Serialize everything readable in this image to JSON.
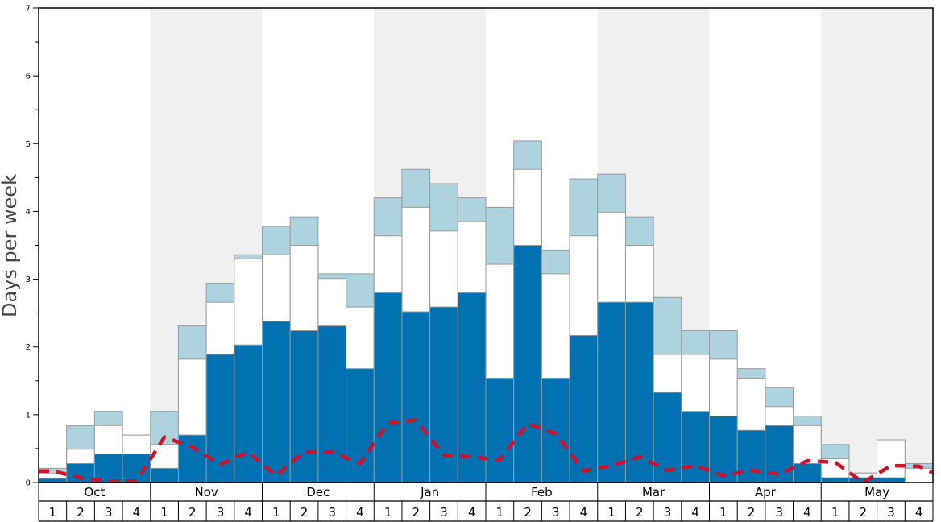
{
  "chart_data": {
    "type": "bar",
    "ylabel": "Days per week",
    "ylim": [
      0,
      7
    ],
    "y_ticks": [
      "0",
      "1",
      "2",
      "3",
      "4",
      "5",
      "6",
      "7"
    ],
    "months": [
      "Oct",
      "Nov",
      "Dec",
      "Jan",
      "Feb",
      "Mar",
      "Apr",
      "May"
    ],
    "week_labels": [
      "1",
      "2",
      "3",
      "4"
    ],
    "categories": [
      "Oct 1",
      "Oct 2",
      "Oct 3",
      "Oct 4",
      "Nov 1",
      "Nov 2",
      "Nov 3",
      "Nov 4",
      "Dec 1",
      "Dec 2",
      "Dec 3",
      "Dec 4",
      "Jan 1",
      "Jan 2",
      "Jan 3",
      "Jan 4",
      "Feb 1",
      "Feb 2",
      "Feb 3",
      "Feb 4",
      "Mar 1",
      "Mar 2",
      "Mar 3",
      "Mar 4",
      "Apr 1",
      "Apr 2",
      "Apr 3",
      "Apr 4",
      "May 1",
      "May 2",
      "May 3",
      "May 4"
    ],
    "series": [
      {
        "type": "bar",
        "color": "#0072b2",
        "values": [
          0.06,
          0.28,
          0.42,
          0.42,
          0.21,
          0.7,
          1.89,
          2.03,
          2.38,
          2.24,
          2.31,
          1.68,
          2.8,
          2.52,
          2.59,
          2.8,
          1.54,
          3.5,
          1.54,
          2.17,
          2.66,
          2.66,
          1.33,
          1.05,
          0.98,
          0.77,
          0.84,
          0.28,
          0.07,
          0.07,
          0.07,
          0.0
        ]
      },
      {
        "type": "bar",
        "color": "#ffffff",
        "values": [
          0.13,
          0.49,
          0.84,
          0.7,
          0.56,
          1.82,
          2.66,
          3.3,
          3.36,
          3.5,
          3.01,
          2.59,
          3.64,
          4.06,
          3.71,
          3.85,
          3.22,
          4.62,
          3.08,
          3.64,
          3.99,
          3.5,
          1.89,
          1.89,
          1.82,
          1.54,
          1.12,
          0.84,
          0.35,
          0.14,
          0.63,
          0.21
        ]
      },
      {
        "type": "bar",
        "color": "#add3df",
        "values": [
          0.21,
          0.84,
          1.05,
          0.7,
          1.05,
          2.31,
          2.94,
          3.36,
          3.78,
          3.92,
          3.08,
          3.08,
          4.2,
          4.62,
          4.41,
          4.2,
          4.06,
          5.04,
          3.43,
          4.48,
          4.55,
          3.92,
          2.73,
          2.24,
          2.24,
          1.68,
          1.4,
          0.98,
          0.56,
          0.14,
          0.63,
          0.28
        ]
      },
      {
        "type": "line",
        "style": "dashed",
        "color": "#d0112b",
        "values": [
          0.17,
          0.07,
          0.02,
          0.02,
          0.67,
          0.52,
          0.27,
          0.45,
          0.1,
          0.45,
          0.45,
          0.28,
          0.88,
          0.92,
          0.4,
          0.38,
          0.33,
          0.87,
          0.72,
          0.17,
          0.25,
          0.38,
          0.18,
          0.25,
          0.1,
          0.18,
          0.12,
          0.32,
          0.3,
          0.0,
          0.25,
          0.24
        ]
      }
    ],
    "shaded_months": [
      "Nov",
      "Jan",
      "Mar",
      "May"
    ],
    "shade_color": "#f0f0f0",
    "grid": false
  }
}
